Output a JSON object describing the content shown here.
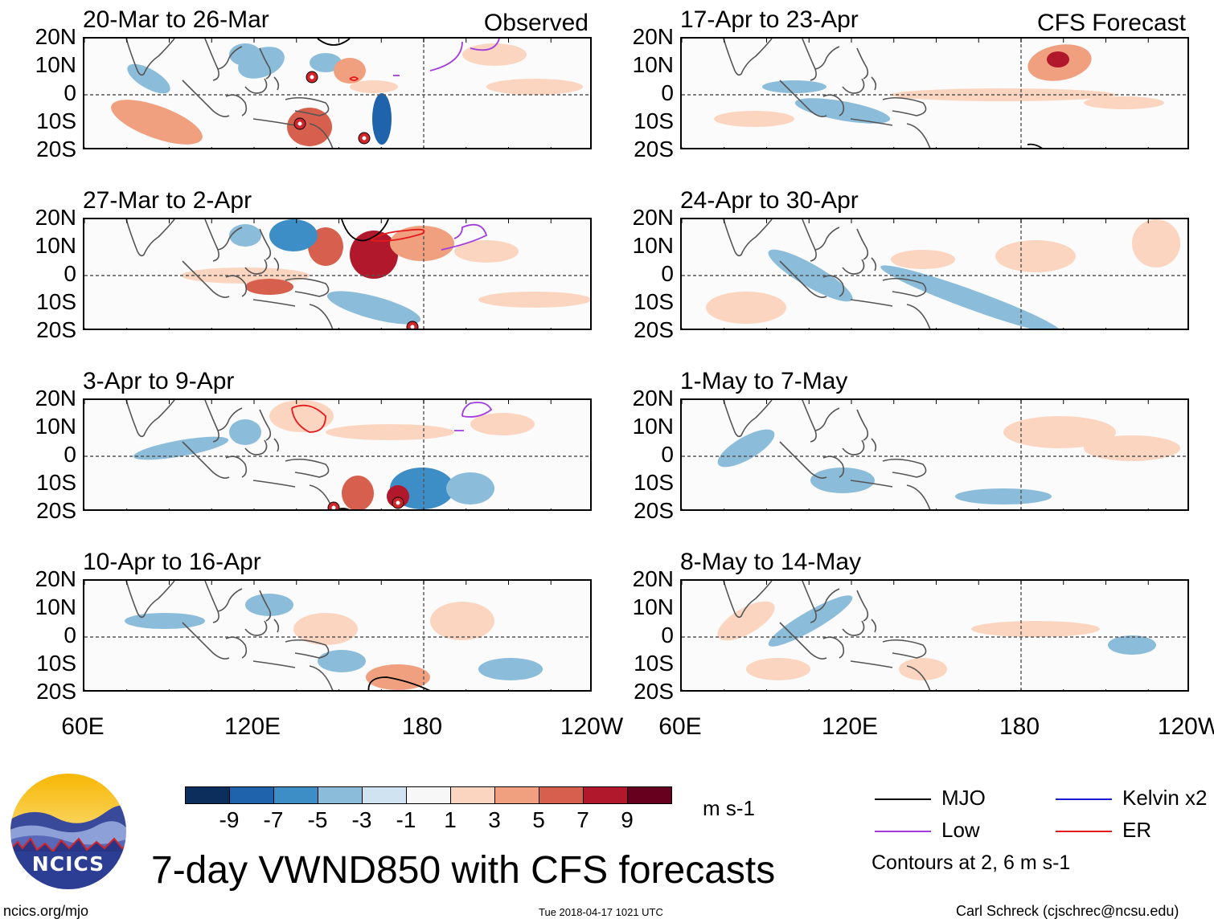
{
  "chart_data": {
    "type": "heatmap",
    "title": "7-day VWND850 with CFS forecasts",
    "variable": "VWND850",
    "units": "m s-1",
    "observed_label": "Observed",
    "forecast_label": "CFS Forecast",
    "lat_ticks": [
      "20N",
      "10N",
      "0",
      "10S",
      "20S"
    ],
    "lon_ticks": [
      "60E",
      "120E",
      "180",
      "120W"
    ],
    "lat_range": [
      -20,
      20
    ],
    "lon_range": [
      60,
      240
    ],
    "panels": [
      {
        "period": "20-Mar to 26-Mar",
        "source": "Observed"
      },
      {
        "period": "27-Mar to 2-Apr",
        "source": "Observed"
      },
      {
        "period": "3-Apr to 9-Apr",
        "source": "Observed"
      },
      {
        "period": "10-Apr to 16-Apr",
        "source": "Observed"
      },
      {
        "period": "17-Apr to 23-Apr",
        "source": "CFS Forecast"
      },
      {
        "period": "24-Apr to 30-Apr",
        "source": "CFS Forecast"
      },
      {
        "period": "1-May to 7-May",
        "source": "CFS Forecast"
      },
      {
        "period": "8-May to 14-May",
        "source": "CFS Forecast"
      }
    ],
    "colorbar": {
      "ticks": [
        "-9",
        "-7",
        "-5",
        "-3",
        "-1",
        "1",
        "3",
        "5",
        "7",
        "9"
      ],
      "colors": [
        "#0b2e5c",
        "#1f63ad",
        "#3d8dc6",
        "#8bbddb",
        "#cfe3f0",
        "#f7f7f7",
        "#fbd5c0",
        "#f0a07f",
        "#d6604d",
        "#b2182b",
        "#67001f"
      ]
    },
    "contour_legend": [
      {
        "label": "MJO",
        "color": "#000000"
      },
      {
        "label": "Kelvin x2",
        "color": "#1a1ad6"
      },
      {
        "label": "Low",
        "color": "#a23bde"
      },
      {
        "label": "ER",
        "color": "#e41a1c"
      }
    ],
    "contour_note": "Contours at 2, 6 m s-1"
  },
  "footer": {
    "logo_text": "NCICS",
    "url": "ncics.org/mjo",
    "timestamp": "Tue 2018-04-17 1021 UTC",
    "author": "Carl Schreck (cjschrec@ncsu.edu)"
  }
}
